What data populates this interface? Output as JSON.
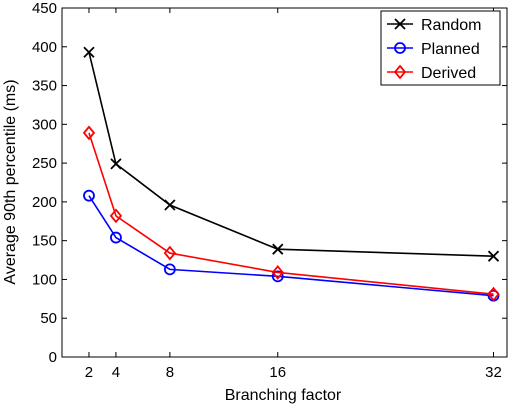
{
  "chart_data": {
    "type": "line",
    "title": "",
    "xlabel": "Branching factor",
    "ylabel": "Average 90th percentile (ms)",
    "x": [
      2,
      4,
      8,
      16,
      32
    ],
    "x_ticks": [
      2,
      4,
      8,
      16,
      32
    ],
    "x_tick_labels": [
      "2",
      "4",
      "8",
      "16",
      "32"
    ],
    "xlim": [
      0,
      33
    ],
    "y_ticks": [
      0,
      50,
      100,
      150,
      200,
      250,
      300,
      350,
      400,
      450
    ],
    "y_tick_labels": [
      "0",
      "50",
      "100",
      "150",
      "200",
      "250",
      "300",
      "350",
      "400",
      "450"
    ],
    "ylim": [
      0,
      450
    ],
    "grid": false,
    "legend_position": "top-right",
    "series": [
      {
        "name": "Random",
        "color": "#000000",
        "marker": "x",
        "values": [
          393,
          249,
          196,
          139,
          130
        ]
      },
      {
        "name": "Planned",
        "color": "#0000ff",
        "marker": "circle",
        "values": [
          208,
          154,
          113,
          104,
          79
        ]
      },
      {
        "name": "Derived",
        "color": "#ff0000",
        "marker": "diamond",
        "values": [
          289,
          182,
          134,
          109,
          81
        ]
      }
    ]
  }
}
